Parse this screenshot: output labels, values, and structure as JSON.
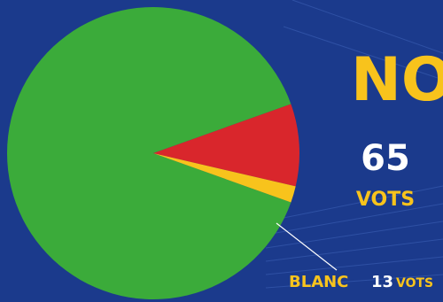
{
  "chart_data": {
    "type": "pie",
    "slices": [
      {
        "name": "",
        "value": 636,
        "color": "#3bab3a"
      },
      {
        "name": "NO",
        "value": 65,
        "color": "#d9262c"
      },
      {
        "name": "BLANC",
        "value": 13,
        "color": "#f8c31c"
      }
    ]
  },
  "labels": {
    "no_title": "NO",
    "no_count": "65",
    "no_unit": "VOTS",
    "blanc_word": "BLANC",
    "blanc_count": "13",
    "blanc_unit": "VOTS"
  },
  "colors": {
    "background": "#1b3a8c",
    "accent_yellow": "#f8c31c",
    "text_white": "#ffffff"
  }
}
